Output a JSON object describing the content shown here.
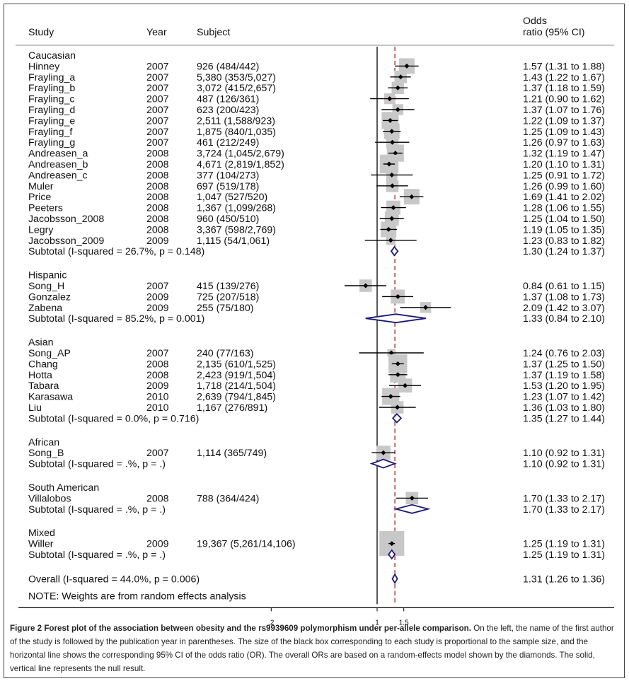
{
  "chart_data": {
    "type": "forest",
    "headers": {
      "study": "Study",
      "year": "Year",
      "subject": "Subject",
      "or_line1": "Odds",
      "or_line2": "ratio (95% CI)"
    },
    "x_ticks": [
      {
        "v": 0.2,
        "label": ".2"
      },
      {
        "v": 1,
        "label": "1"
      },
      {
        "v": 1.5,
        "label": "1.5"
      }
    ],
    "null_value": 1,
    "overall_value": 1.31,
    "groups": [
      {
        "name": "Caucasian",
        "studies": [
          {
            "label": "Hinney",
            "year": "2007",
            "subject": "926 (484/442)",
            "or": 1.57,
            "lo": 1.31,
            "hi": 1.88,
            "ci_text": "1.57 (1.31 to 1.88)",
            "box": 1.0
          },
          {
            "label": "Frayling_a",
            "year": "2007",
            "subject": "5,380 (353/5,027)",
            "or": 1.43,
            "lo": 1.22,
            "hi": 1.67,
            "ci_text": "1.43 (1.22 to 1.67)",
            "box": 0.8
          },
          {
            "label": "Frayling_b",
            "year": "2007",
            "subject": "3,072 (415/2,657)",
            "or": 1.37,
            "lo": 1.18,
            "hi": 1.59,
            "ci_text": "1.37 (1.18 to 1.59)",
            "box": 0.8
          },
          {
            "label": "Frayling_c",
            "year": "2007",
            "subject": "487 (126/361)",
            "or": 1.21,
            "lo": 0.9,
            "hi": 1.62,
            "ci_text": "1.21 (0.90 to 1.62)",
            "box": 0.7
          },
          {
            "label": "Frayling_d",
            "year": "2007",
            "subject": "623 (200/423)",
            "or": 1.37,
            "lo": 1.07,
            "hi": 1.76,
            "ci_text": "1.37 (1.07 to 1.76)",
            "box": 0.7
          },
          {
            "label": "Frayling_e",
            "year": "2007",
            "subject": "2,511 (1,588/923)",
            "or": 1.22,
            "lo": 1.09,
            "hi": 1.37,
            "ci_text": "1.22 (1.09 to 1.37)",
            "box": 1.1
          },
          {
            "label": "Frayling_f",
            "year": "2007",
            "subject": "1,875 (840/1,035)",
            "or": 1.25,
            "lo": 1.09,
            "hi": 1.43,
            "ci_text": "1.25 (1.09 to 1.43)",
            "box": 1.0
          },
          {
            "label": "Frayling_g",
            "year": "2007",
            "subject": "461 (212/249)",
            "or": 1.26,
            "lo": 0.97,
            "hi": 1.63,
            "ci_text": "1.26 (0.97 to 1.63)",
            "box": 0.8
          },
          {
            "label": "Andreasen_a",
            "year": "2008",
            "subject": "3,724 (1,045/2,679)",
            "or": 1.32,
            "lo": 1.19,
            "hi": 1.47,
            "ci_text": "1.32 (1.19 to 1.47)",
            "box": 1.1
          },
          {
            "label": "Andreasen_b",
            "year": "2008",
            "subject": "4,671 (2,819/1,852)",
            "or": 1.2,
            "lo": 1.1,
            "hi": 1.31,
            "ci_text": "1.20 (1.10 to 1.31)",
            "box": 1.2
          },
          {
            "label": "Andreasen_c",
            "year": "2008",
            "subject": "377 (104/273)",
            "or": 1.25,
            "lo": 0.91,
            "hi": 1.72,
            "ci_text": "1.25 (0.91 to 1.72)",
            "box": 0.7
          },
          {
            "label": "Muler",
            "year": "2008",
            "subject": "697 (519/178)",
            "or": 1.26,
            "lo": 0.99,
            "hi": 1.6,
            "ci_text": "1.26 (0.99 to 1.60)",
            "box": 0.8
          },
          {
            "label": "Price",
            "year": "2008",
            "subject": "1,047 (527/520)",
            "or": 1.69,
            "lo": 1.41,
            "hi": 2.02,
            "ci_text": "1.69 (1.41 to 2.02)",
            "box": 1.0
          },
          {
            "label": "Peeters",
            "year": "2008",
            "subject": "1,367 (1,099/268)",
            "or": 1.28,
            "lo": 1.06,
            "hi": 1.55,
            "ci_text": "1.28 (1.06 to 1.55)",
            "box": 0.9
          },
          {
            "label": "Jacobsson_2008",
            "year": "2008",
            "subject": "960 (450/510)",
            "or": 1.25,
            "lo": 1.04,
            "hi": 1.5,
            "ci_text": "1.25 (1.04 to 1.50)",
            "box": 0.9
          },
          {
            "label": "Legry",
            "year": "2008",
            "subject": "3,367 (598/2,769)",
            "or": 1.19,
            "lo": 1.05,
            "hi": 1.35,
            "ci_text": "1.19 (1.05 to 1.35)",
            "box": 1.0
          },
          {
            "label": "Jacobsson_2009",
            "year": "2009",
            "subject": "1,115 (54/1,061)",
            "or": 1.23,
            "lo": 0.83,
            "hi": 1.82,
            "ci_text": "1.23 (0.83 to 1.82)",
            "box": 0.6
          }
        ],
        "subtotal": {
          "label": "Subtotal  (I-squared = 26.7%, p = 0.148)",
          "or": 1.3,
          "lo": 1.24,
          "hi": 1.37,
          "ci_text": "1.30 (1.24 to 1.37)"
        }
      },
      {
        "name": "Hispanic",
        "studies": [
          {
            "label": "Song_H",
            "year": "2007",
            "subject": "415 (139/276)",
            "or": 0.84,
            "lo": 0.61,
            "hi": 1.15,
            "ci_text": "0.84 (0.61 to 1.15)",
            "box": 0.8
          },
          {
            "label": "Gonzalez",
            "year": "2009",
            "subject": "725 (207/518)",
            "or": 1.37,
            "lo": 1.08,
            "hi": 1.73,
            "ci_text": "1.37 (1.08 to 1.73)",
            "box": 0.9
          },
          {
            "label": "Zabena",
            "year": "2009",
            "subject": "255 (75/180)",
            "or": 2.09,
            "lo": 1.42,
            "hi": 3.07,
            "ci_text": "2.09 (1.42 to 3.07)",
            "box": 0.7
          }
        ],
        "subtotal": {
          "label": "Subtotal  (I-squared = 85.2%, p = 0.001)",
          "or": 1.33,
          "lo": 0.84,
          "hi": 2.1,
          "ci_text": "1.33 (0.84 to 2.10)"
        }
      },
      {
        "name": "Asian",
        "studies": [
          {
            "label": "Song_AP",
            "year": "2007",
            "subject": "240 (77/163)",
            "or": 1.24,
            "lo": 0.76,
            "hi": 2.03,
            "ci_text": "1.24 (0.76 to 2.03)",
            "box": 0.5
          },
          {
            "label": "Chang",
            "year": "2008",
            "subject": "2,135 (610/1,525)",
            "or": 1.37,
            "lo": 1.25,
            "hi": 1.5,
            "ci_text": "1.37 (1.25 to 1.50)",
            "box": 1.2
          },
          {
            "label": "Hotta",
            "year": "2008",
            "subject": "2,423 (919/1,504)",
            "or": 1.37,
            "lo": 1.19,
            "hi": 1.58,
            "ci_text": "1.37 (1.19 to 1.58)",
            "box": 1.0
          },
          {
            "label": "Tabara",
            "year": "2009",
            "subject": "1,718 (214/1,504)",
            "or": 1.53,
            "lo": 1.2,
            "hi": 1.95,
            "ci_text": "1.53 (1.20 to 1.95)",
            "box": 0.9
          },
          {
            "label": "Karasawa",
            "year": "2010",
            "subject": "2,639 (794/1,845)",
            "or": 1.23,
            "lo": 1.07,
            "hi": 1.42,
            "ci_text": "1.23 (1.07 to 1.42)",
            "box": 1.1
          },
          {
            "label": "Liu",
            "year": "2010",
            "subject": "1,167 (276/891)",
            "or": 1.36,
            "lo": 1.03,
            "hi": 1.8,
            "ci_text": "1.36 (1.03 to 1.80)",
            "box": 0.8
          }
        ],
        "subtotal": {
          "label": "Subtotal  (I-squared = 0.0%, p = 0.716)",
          "or": 1.35,
          "lo": 1.27,
          "hi": 1.44,
          "ci_text": "1.35 (1.27 to 1.44)"
        }
      },
      {
        "name": "African",
        "studies": [
          {
            "label": "Song_B",
            "year": "2007",
            "subject": "1,114 (365/749)",
            "or": 1.1,
            "lo": 0.92,
            "hi": 1.31,
            "ci_text": "1.10 (0.92 to 1.31)",
            "box": 0.9
          }
        ],
        "subtotal": {
          "label": "Subtotal  (I-squared = .%, p = .)",
          "or": 1.1,
          "lo": 0.92,
          "hi": 1.31,
          "ci_text": "1.10 (0.92 to 1.31)"
        }
      },
      {
        "name": "South American",
        "studies": [
          {
            "label": "Villalobos",
            "year": "2008",
            "subject": "788 (364/424)",
            "or": 1.7,
            "lo": 1.33,
            "hi": 2.17,
            "ci_text": "1.70 (1.33 to 2.17)",
            "box": 0.8
          }
        ],
        "subtotal": {
          "label": "Subtotal  (I-squared = .%, p = .)",
          "or": 1.7,
          "lo": 1.33,
          "hi": 2.17,
          "ci_text": "1.70 (1.33 to 2.17)"
        }
      },
      {
        "name": "Mixed",
        "studies": [
          {
            "label": "Willer",
            "year": "2009",
            "subject": "19,367 (5,261/14,106)",
            "or": 1.25,
            "lo": 1.19,
            "hi": 1.31,
            "ci_text": "1.25 (1.19 to 1.31)",
            "box": 1.6
          }
        ],
        "subtotal": {
          "label": "Subtotal  (I-squared = .%, p = .)",
          "or": 1.25,
          "lo": 1.19,
          "hi": 1.31,
          "ci_text": "1.25 (1.19 to 1.31)"
        }
      }
    ],
    "overall": {
      "label": "Overall  (I-squared = 44.0%, p = 0.006)",
      "or": 1.31,
      "lo": 1.26,
      "hi": 1.36,
      "ci_text": "1.31 (1.26 to 1.36)"
    },
    "note": "NOTE: Weights are from random effects analysis",
    "colors": {
      "box": "#c8c8c8",
      "diamond": "#1a1a7a",
      "overall_line": "#b02020",
      "line": "#000000"
    }
  },
  "caption": {
    "lead": "Figure 2 Forest plot of the association between obesity and the rs9939609 polymorphism under per-allele comparison.",
    "text": "On the left, the name of the first author of the study is followed by the publication year in parentheses. The size of the black box corresponding to each study is proportional to the sample size, and the horizontal line shows the corresponding 95% CI of the odds ratio (OR). The overall ORs are based on a random-effects model shown by the diamonds. The solid, vertical line represents the null result."
  }
}
